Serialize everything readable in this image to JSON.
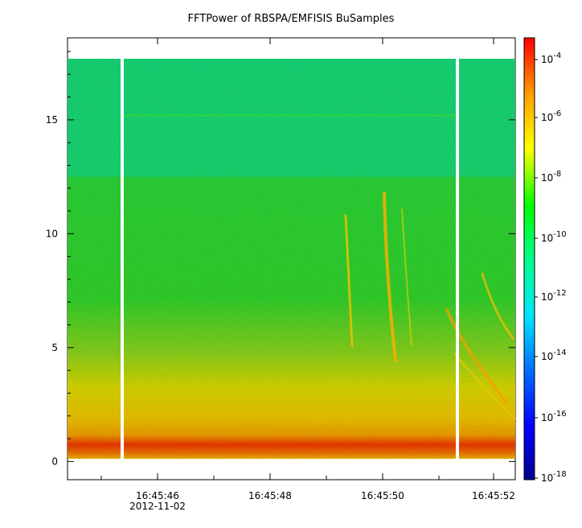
{
  "chart_data": {
    "type": "heatmap",
    "title": "FFTPower of RBSPA/EMFISIS  BuSamples",
    "x_ticks": [
      "16:45:46",
      "16:45:48",
      "16:45:50",
      "16:45:52"
    ],
    "x_tick_date": "2012-11-02",
    "y_ticks": [
      0,
      5,
      10,
      15
    ],
    "ylim": [
      -0.8,
      18.6
    ],
    "frequency_max_data": 17.5,
    "colorbar": {
      "scale": "log",
      "ticks": [
        "10-4",
        "10-6",
        "10-8",
        "10-10",
        "10-12",
        "10-14",
        "10-16",
        "10-18"
      ],
      "range": [
        "1e-18",
        "1e-4"
      ],
      "colors": [
        "#00008b",
        "#0000ff",
        "#00bfff",
        "#00ffaa",
        "#00ff00",
        "#ffff00",
        "#ffaa00",
        "#ff0000"
      ]
    },
    "description_colors": {
      "background_band": "#1ae87a",
      "mid_band": "#33e038",
      "low_band": "#ffd200",
      "bottom_band": "#ff3300"
    }
  }
}
